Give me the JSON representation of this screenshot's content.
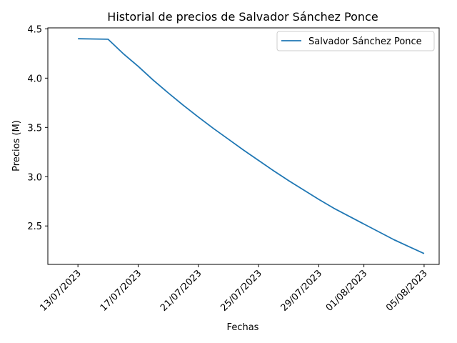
{
  "chart_data": {
    "type": "line",
    "title": "Historial de precios de Salvador Sánchez Ponce",
    "xlabel": "Fechas",
    "ylabel": "Precios (M)",
    "x_ticks": [
      "13/07/2023",
      "17/07/2023",
      "21/07/2023",
      "25/07/2023",
      "29/07/2023",
      "01/08/2023",
      "05/08/2023"
    ],
    "x_tick_dates": [
      "2023-07-13",
      "2023-07-17",
      "2023-07-21",
      "2023-07-25",
      "2023-07-29",
      "2023-08-01",
      "2023-08-05"
    ],
    "xlim": [
      "2023-07-11",
      "2023-08-06"
    ],
    "y_ticks": [
      2.5,
      3.0,
      3.5,
      4.0,
      4.5
    ],
    "ylim": [
      2.11,
      4.51
    ],
    "legend_position": "top-right",
    "grid": false,
    "series": [
      {
        "name": "Salvador Sánchez Ponce",
        "color": "#1f77b4",
        "points": [
          {
            "x": "2023-07-13",
            "y": 4.4
          },
          {
            "x": "2023-07-15",
            "y": 4.395
          },
          {
            "x": "2023-07-16",
            "y": 4.25
          },
          {
            "x": "2023-07-17",
            "y": 4.12
          },
          {
            "x": "2023-07-18",
            "y": 3.98
          },
          {
            "x": "2023-07-19",
            "y": 3.85
          },
          {
            "x": "2023-07-20",
            "y": 3.725
          },
          {
            "x": "2023-07-21",
            "y": 3.605
          },
          {
            "x": "2023-07-22",
            "y": 3.49
          },
          {
            "x": "2023-07-23",
            "y": 3.38
          },
          {
            "x": "2023-07-24",
            "y": 3.27
          },
          {
            "x": "2023-07-25",
            "y": 3.165
          },
          {
            "x": "2023-07-26",
            "y": 3.06
          },
          {
            "x": "2023-07-27",
            "y": 2.96
          },
          {
            "x": "2023-07-28",
            "y": 2.865
          },
          {
            "x": "2023-07-29",
            "y": 2.77
          },
          {
            "x": "2023-07-30",
            "y": 2.68
          },
          {
            "x": "2023-07-31",
            "y": 2.6
          },
          {
            "x": "2023-08-01",
            "y": 2.52
          },
          {
            "x": "2023-08-02",
            "y": 2.44
          },
          {
            "x": "2023-08-03",
            "y": 2.36
          },
          {
            "x": "2023-08-04",
            "y": 2.29
          },
          {
            "x": "2023-08-05",
            "y": 2.22
          }
        ]
      }
    ]
  }
}
